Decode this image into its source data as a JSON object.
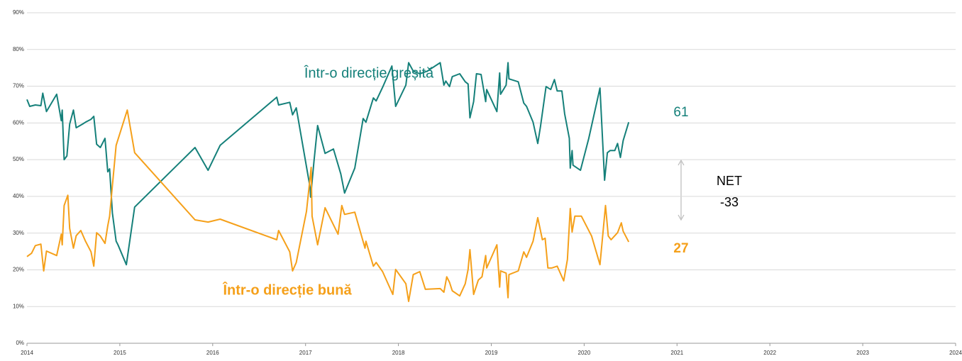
{
  "chart_data": {
    "type": "line",
    "xlim": [
      2014,
      2024
    ],
    "xticks": [
      2014,
      2015,
      2016,
      2017,
      2018,
      2019,
      2020,
      2021,
      2022,
      2023,
      2024
    ],
    "ylim": [
      0,
      90
    ],
    "yticks": [
      {
        "value": 0,
        "label": "0%"
      },
      {
        "value": 10,
        "label": "10%"
      },
      {
        "value": 20,
        "label": "20%"
      },
      {
        "value": 30,
        "label": "30%"
      },
      {
        "value": 40,
        "label": "40%"
      },
      {
        "value": 50,
        "label": "50%"
      },
      {
        "value": 60,
        "label": "60%"
      },
      {
        "value": 70,
        "label": "70%"
      },
      {
        "value": 80,
        "label": "80%"
      },
      {
        "value": 90,
        "label": "90%"
      }
    ],
    "grid": true,
    "series": [
      {
        "name": "Într-o direcție greșită",
        "color": "#15807a",
        "x": [
          2014.0,
          2014.03,
          2014.09,
          2014.15,
          2014.17,
          2014.21,
          2014.32,
          2014.37,
          2014.38,
          2014.4,
          2014.43,
          2014.46,
          2014.5,
          2014.53,
          2014.6,
          2014.63,
          2014.69,
          2014.72,
          2014.75,
          2014.79,
          2014.84,
          2014.87,
          2014.89,
          2014.92,
          2014.96,
          2014.98,
          2015.07,
          2015.16,
          2015.81,
          2015.95,
          2016.08,
          2016.69,
          2016.71,
          2016.83,
          2016.86,
          2016.9,
          2017.05,
          2017.055,
          2017.09,
          2017.13,
          2017.21,
          2017.3,
          2017.38,
          2017.42,
          2017.53,
          2017.62,
          2017.65,
          2017.73,
          2017.76,
          2017.83,
          2017.93,
          2017.97,
          2018.08,
          2018.11,
          2018.16,
          2018.23,
          2018.31,
          2018.45,
          2018.49,
          2018.51,
          2018.55,
          2018.58,
          2018.66,
          2018.72,
          2018.75,
          2018.77,
          2018.81,
          2018.84,
          2018.89,
          2018.94,
          2018.95,
          2019.06,
          2019.09,
          2019.1,
          2019.16,
          2019.18,
          2019.19,
          2019.29,
          2019.35,
          2019.38,
          2019.45,
          2019.5,
          2019.53,
          2019.59,
          2019.64,
          2019.68,
          2019.71,
          2019.76,
          2019.79,
          2019.84,
          2019.85,
          2019.87,
          2019.88,
          2019.96,
          2020.05,
          2020.17,
          2020.22,
          2020.25,
          2020.28,
          2020.33,
          2020.36,
          2020.39,
          2020.42,
          2020.48
        ],
        "values": [
          66.4,
          64.5,
          64.9,
          64.7,
          68.1,
          63.1,
          67.8,
          60.6,
          63.5,
          50,
          51,
          59.7,
          63.5,
          58.7,
          59.7,
          60.2,
          61,
          61.8,
          54.2,
          53.3,
          55.8,
          46.7,
          47.5,
          35.5,
          27.8,
          26.8,
          21.4,
          37.1,
          53.3,
          47.1,
          53.9,
          67,
          64.9,
          65.6,
          62.2,
          64.1,
          42.3,
          39.8,
          49.4,
          59.3,
          51.7,
          52.9,
          46.1,
          40.9,
          47.7,
          61.2,
          60.2,
          66.8,
          66,
          69.7,
          75.5,
          64.5,
          70.3,
          76.4,
          74.1,
          73.4,
          74.1,
          76.4,
          70.3,
          71.4,
          69.9,
          72.6,
          73.4,
          71.2,
          70.6,
          61.4,
          65.8,
          73.4,
          73.2,
          65.8,
          69.1,
          63.1,
          73.6,
          67.8,
          70.3,
          76.4,
          72,
          71.2,
          65.4,
          64.5,
          60.2,
          54.4,
          59.1,
          69.9,
          69.1,
          71.8,
          68.7,
          68.7,
          62.5,
          55.8,
          47.7,
          52.5,
          48.5,
          47.1,
          55.8,
          69.5,
          44.4,
          51.9,
          52.5,
          52.5,
          54.4,
          50.6,
          55.2,
          60.2
        ]
      },
      {
        "name": "Într-o direcție bună",
        "color": "#f5a01a",
        "x": [
          2014.0,
          2014.05,
          2014.09,
          2014.15,
          2014.18,
          2014.21,
          2014.32,
          2014.37,
          2014.38,
          2014.4,
          2014.44,
          2014.46,
          2014.5,
          2014.53,
          2014.58,
          2014.63,
          2014.69,
          2014.72,
          2014.75,
          2014.79,
          2014.84,
          2014.87,
          2014.89,
          2014.92,
          2014.96,
          2015.08,
          2015.16,
          2015.81,
          2015.95,
          2016.08,
          2016.69,
          2016.71,
          2016.83,
          2016.86,
          2016.9,
          2017.01,
          2017.06,
          2017.07,
          2017.13,
          2017.21,
          2017.35,
          2017.39,
          2017.42,
          2017.53,
          2017.64,
          2017.65,
          2017.73,
          2017.76,
          2017.83,
          2017.94,
          2017.97,
          2018.08,
          2018.11,
          2018.16,
          2018.23,
          2018.29,
          2018.45,
          2018.49,
          2018.52,
          2018.55,
          2018.58,
          2018.66,
          2018.72,
          2018.75,
          2018.77,
          2018.81,
          2018.86,
          2018.9,
          2018.94,
          2018.95,
          2019.06,
          2019.09,
          2019.1,
          2019.16,
          2019.18,
          2019.19,
          2019.29,
          2019.35,
          2019.38,
          2019.45,
          2019.5,
          2019.55,
          2019.58,
          2019.61,
          2019.65,
          2019.71,
          2019.78,
          2019.82,
          2019.85,
          2019.87,
          2019.9,
          2019.97,
          2020.08,
          2020.17,
          2020.23,
          2020.26,
          2020.29,
          2020.33,
          2020.36,
          2020.4,
          2020.42,
          2020.48
        ],
        "values": [
          23.6,
          24.5,
          26.6,
          27,
          19.7,
          25.1,
          23.9,
          29.7,
          26.8,
          37.5,
          40.3,
          31.3,
          25.9,
          29.3,
          30.7,
          27.8,
          24.9,
          21,
          30.1,
          29.2,
          27.2,
          32,
          34.6,
          42.9,
          53.9,
          63.5,
          51.9,
          33.6,
          33,
          33.8,
          28.2,
          30.7,
          24.9,
          19.7,
          22,
          35.9,
          47.9,
          34.6,
          26.8,
          36.9,
          29.7,
          37.5,
          35.1,
          35.7,
          25.9,
          27.8,
          21,
          22,
          19.5,
          13.3,
          20.1,
          16.2,
          11.4,
          18.7,
          19.5,
          14.7,
          14.9,
          13.9,
          18.1,
          16.6,
          14.3,
          12.9,
          16.2,
          20.1,
          25.5,
          13.3,
          17.2,
          18.1,
          23.9,
          20.5,
          26.8,
          15.3,
          19.7,
          19.1,
          12.4,
          18.7,
          19.7,
          24.9,
          23.4,
          27.8,
          34.2,
          28.2,
          28.6,
          20.5,
          20.5,
          21,
          17,
          22.8,
          36.7,
          30.3,
          34.6,
          34.6,
          29.2,
          21.4,
          37.5,
          29.2,
          28.2,
          29.3,
          30.1,
          32.8,
          30.5,
          27.6
        ]
      }
    ],
    "annotations": [
      "61",
      "27",
      "NET",
      "-33"
    ]
  }
}
